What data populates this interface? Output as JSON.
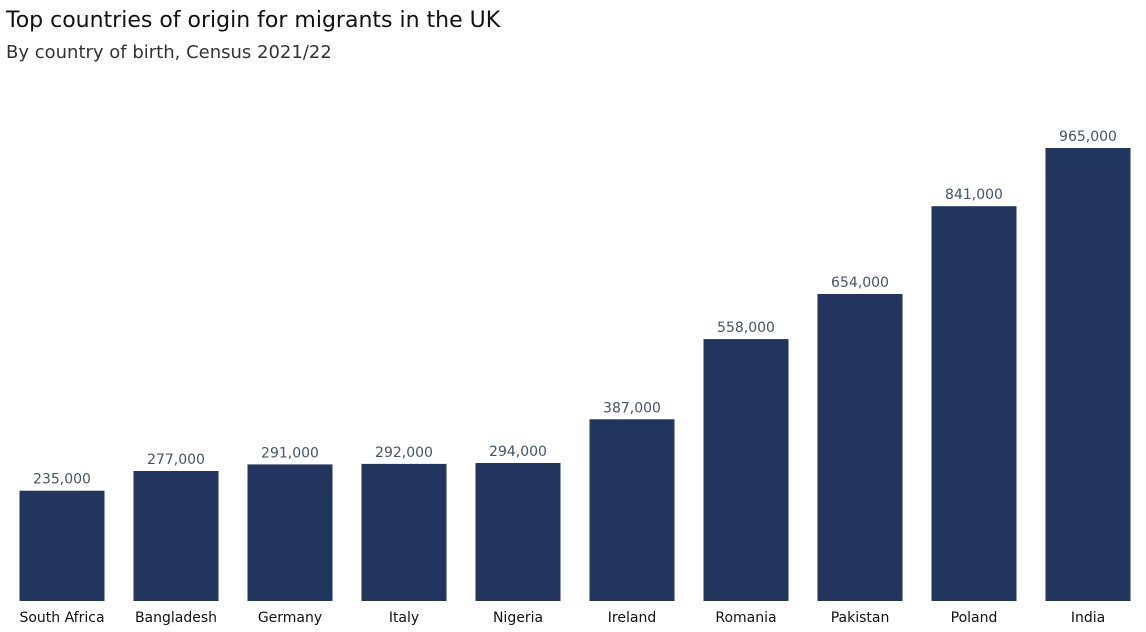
{
  "chart_data": {
    "type": "bar",
    "title": "Top countries of origin for migrants in the UK",
    "subtitle": "By country of birth, Census 2021/22",
    "xlabel": "",
    "ylabel": "",
    "categories": [
      "South Africa",
      "Bangladesh",
      "Germany",
      "Italy",
      "Nigeria",
      "Ireland",
      "Romania",
      "Pakistan",
      "Poland",
      "India"
    ],
    "values": [
      235000,
      277000,
      291000,
      292000,
      294000,
      387000,
      558000,
      654000,
      841000,
      965000
    ],
    "value_labels": [
      "235,000",
      "277,000",
      "291,000",
      "292,000",
      "294,000",
      "387,000",
      "558,000",
      "654,000",
      "841,000",
      "965,000"
    ],
    "ylim": [
      0,
      1000000
    ],
    "grid": false,
    "bar_color": "#22355f",
    "label_color": "#44546a"
  }
}
